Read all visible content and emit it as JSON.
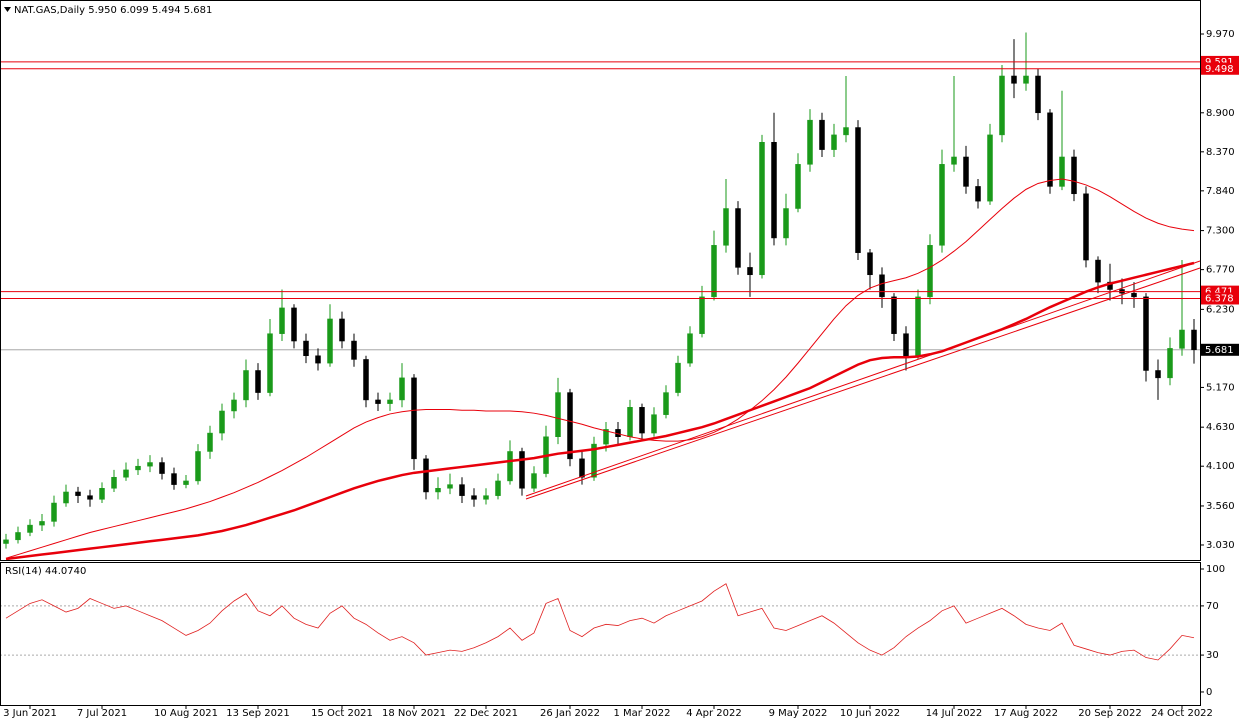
{
  "chart_data": {
    "type": "candlestick",
    "title": "NAT.GAS,Daily",
    "categories": [
      null,
      null,
      "3 Jun 2021",
      null,
      null,
      null,
      null,
      null,
      "7 Jul 2021",
      null,
      null,
      null,
      null,
      null,
      null,
      "10 Aug 2021",
      null,
      null,
      null,
      null,
      null,
      "13 Sep 2021",
      null,
      null,
      null,
      null,
      null,
      null,
      "15 Oct 2021",
      null,
      null,
      null,
      null,
      null,
      "18 Nov 2021",
      null,
      null,
      null,
      null,
      null,
      "22 Dec 2021",
      null,
      null,
      null,
      null,
      null,
      null,
      "26 Jan 2022",
      null,
      null,
      null,
      null,
      null,
      "1 Mar 2022",
      null,
      null,
      null,
      null,
      null,
      "4 Apr 2022",
      null,
      null,
      null,
      null,
      null,
      null,
      "9 May 2022",
      null,
      null,
      null,
      null,
      null,
      "10 Jun 2022",
      null,
      null,
      null,
      null,
      null,
      null,
      "14 Jul 2022",
      null,
      null,
      null,
      null,
      null,
      "17 Aug 2022",
      null,
      null,
      null,
      null,
      null,
      null,
      "20 Sep 2022",
      null,
      null,
      null,
      null,
      null,
      "24 Oct 2022",
      null
    ],
    "open": [
      3.05,
      3.1,
      3.2,
      3.3,
      3.35,
      3.6,
      3.75,
      3.7,
      3.65,
      3.8,
      3.95,
      4.05,
      4.1,
      4.15,
      4.0,
      3.85,
      3.9,
      4.3,
      4.55,
      4.85,
      5.0,
      5.4,
      5.1,
      5.9,
      6.25,
      5.8,
      5.6,
      5.5,
      6.1,
      5.8,
      5.55,
      5.0,
      4.95,
      5.0,
      5.3,
      4.2,
      3.75,
      3.8,
      3.85,
      3.7,
      3.65,
      3.7,
      3.9,
      4.3,
      3.8,
      4.0,
      4.5,
      5.1,
      4.2,
      3.95,
      4.4,
      4.6,
      4.5,
      4.9,
      4.55,
      4.8,
      5.1,
      5.5,
      5.9,
      6.4,
      7.1,
      7.6,
      6.8,
      6.7,
      8.5,
      7.2,
      7.6,
      8.2,
      8.8,
      8.4,
      8.6,
      8.7,
      7.0,
      6.7,
      6.4,
      5.9,
      5.6,
      6.4,
      7.1,
      8.2,
      8.3,
      7.9,
      7.7,
      8.6,
      9.4,
      9.3,
      9.4,
      8.9,
      7.9,
      8.3,
      7.8,
      6.9,
      6.6,
      6.5,
      6.45,
      6.4,
      5.4,
      5.3,
      5.7,
      5.95
    ],
    "high": [
      3.18,
      3.28,
      3.38,
      3.45,
      3.7,
      3.85,
      3.82,
      3.78,
      3.88,
      4.05,
      4.15,
      4.2,
      4.25,
      4.22,
      4.08,
      3.98,
      4.4,
      4.65,
      4.95,
      5.1,
      5.55,
      5.5,
      6.1,
      6.5,
      6.3,
      5.9,
      5.7,
      6.3,
      6.2,
      5.9,
      5.6,
      5.1,
      5.1,
      5.5,
      5.35,
      4.25,
      3.95,
      4.0,
      3.95,
      3.8,
      3.8,
      4.0,
      4.45,
      4.35,
      4.1,
      4.65,
      5.3,
      5.15,
      4.3,
      4.5,
      4.7,
      4.7,
      5.0,
      4.95,
      4.9,
      5.2,
      5.6,
      6.0,
      6.55,
      7.3,
      8.0,
      7.7,
      7.0,
      8.6,
      8.9,
      7.8,
      8.35,
      8.95,
      8.9,
      8.75,
      9.4,
      8.8,
      7.05,
      6.8,
      6.45,
      6.0,
      6.5,
      7.25,
      8.4,
      9.4,
      8.45,
      8.0,
      8.75,
      9.55,
      9.9,
      9.99,
      9.5,
      8.95,
      9.2,
      8.4,
      7.9,
      6.95,
      6.85,
      6.65,
      6.6,
      6.45,
      5.55,
      5.85,
      6.9,
      6.099
    ],
    "low": [
      2.98,
      3.05,
      3.15,
      3.22,
      3.28,
      3.55,
      3.6,
      3.55,
      3.6,
      3.75,
      3.9,
      3.98,
      4.02,
      3.92,
      3.78,
      3.8,
      3.85,
      4.2,
      4.45,
      4.75,
      4.9,
      5.0,
      5.05,
      5.8,
      5.7,
      5.5,
      5.4,
      5.45,
      5.7,
      5.45,
      4.9,
      4.85,
      4.85,
      4.9,
      4.05,
      3.65,
      3.65,
      3.72,
      3.6,
      3.55,
      3.58,
      3.65,
      3.85,
      3.7,
      3.75,
      3.95,
      4.4,
      4.1,
      3.85,
      3.9,
      4.3,
      4.4,
      4.45,
      4.45,
      4.5,
      4.75,
      5.05,
      5.45,
      5.85,
      6.35,
      7.0,
      6.7,
      6.4,
      6.65,
      7.1,
      7.1,
      7.55,
      8.1,
      8.3,
      8.3,
      8.5,
      6.9,
      6.5,
      6.25,
      5.8,
      5.4,
      5.55,
      6.3,
      7.0,
      8.1,
      7.8,
      7.6,
      7.65,
      8.5,
      9.1,
      9.2,
      8.8,
      7.8,
      7.85,
      7.7,
      6.8,
      6.45,
      6.35,
      6.3,
      6.25,
      5.25,
      5.0,
      5.2,
      5.6,
      5.494
    ],
    "close": [
      3.1,
      3.2,
      3.3,
      3.35,
      3.6,
      3.75,
      3.7,
      3.65,
      3.8,
      3.95,
      4.05,
      4.1,
      4.15,
      4.0,
      3.85,
      3.9,
      4.3,
      4.55,
      4.85,
      5.0,
      5.4,
      5.1,
      5.9,
      6.25,
      5.8,
      5.6,
      5.5,
      6.1,
      5.8,
      5.55,
      5.0,
      4.95,
      5.0,
      5.3,
      4.2,
      3.75,
      3.8,
      3.85,
      3.7,
      3.65,
      3.7,
      3.9,
      4.3,
      3.8,
      4.0,
      4.5,
      5.1,
      4.2,
      3.95,
      4.4,
      4.6,
      4.5,
      4.9,
      4.55,
      4.8,
      5.1,
      5.5,
      5.9,
      6.4,
      7.1,
      7.6,
      6.8,
      6.7,
      8.5,
      7.2,
      7.6,
      8.2,
      8.8,
      8.4,
      8.6,
      8.7,
      7.0,
      6.7,
      6.4,
      5.9,
      5.6,
      6.4,
      7.1,
      8.2,
      8.3,
      7.9,
      7.7,
      8.6,
      9.4,
      9.3,
      9.4,
      8.9,
      7.9,
      8.3,
      7.8,
      6.9,
      6.6,
      6.5,
      6.45,
      6.4,
      5.4,
      5.3,
      5.7,
      5.95,
      5.681
    ],
    "value_labels": {
      "open": {
        "99": "5.950"
      },
      "high": {
        "99": "6.099"
      },
      "low": {
        "99": "5.494"
      },
      "close": {
        "99": "5.681"
      }
    },
    "up_color": "#1a9a1a",
    "down_color": "#000000",
    "ylim": [
      2.826,
      10.432
    ],
    "yticks": [
      {
        "value": 9.97,
        "label": "9.970"
      },
      {
        "value": 8.9,
        "label": "8.900"
      },
      {
        "value": 8.37,
        "label": "8.370"
      },
      {
        "value": 7.84,
        "label": "7.840"
      },
      {
        "value": 7.3,
        "label": "7.300"
      },
      {
        "value": 6.77,
        "label": "6.770"
      },
      {
        "value": 6.23,
        "label": "6.230"
      },
      {
        "value": 5.17,
        "label": "5.170"
      },
      {
        "value": 4.63,
        "label": "4.630"
      },
      {
        "value": 4.1,
        "label": "4.100"
      },
      {
        "value": 3.56,
        "label": "3.560"
      },
      {
        "value": 3.03,
        "label": "3.030"
      }
    ],
    "overlays": [
      {
        "color": "#e8000b",
        "width": 2.5,
        "values": [
          2.84,
          2.86,
          2.88,
          2.9,
          2.92,
          2.94,
          2.96,
          2.98,
          3.0,
          3.02,
          3.04,
          3.06,
          3.08,
          3.1,
          3.12,
          3.14,
          3.16,
          3.19,
          3.22,
          3.26,
          3.3,
          3.35,
          3.4,
          3.45,
          3.5,
          3.56,
          3.62,
          3.68,
          3.74,
          3.8,
          3.85,
          3.9,
          3.94,
          3.98,
          4.01,
          4.03,
          4.05,
          4.07,
          4.09,
          4.11,
          4.13,
          4.15,
          4.17,
          4.19,
          4.21,
          4.24,
          4.27,
          4.29,
          4.31,
          4.33,
          4.36,
          4.39,
          4.42,
          4.45,
          4.48,
          4.51,
          4.55,
          4.59,
          4.63,
          4.68,
          4.74,
          4.8,
          4.86,
          4.92,
          4.98,
          5.04,
          5.1,
          5.16,
          5.24,
          5.32,
          5.4,
          5.48,
          5.54,
          5.57,
          5.58,
          5.58,
          5.59,
          5.62,
          5.66,
          5.72,
          5.78,
          5.84,
          5.9,
          5.96,
          6.03,
          6.1,
          6.18,
          6.26,
          6.33,
          6.4,
          6.47,
          6.53,
          6.58,
          6.62,
          6.66,
          6.7,
          6.74,
          6.78,
          6.82,
          6.86
        ]
      },
      {
        "color": "#e8000b",
        "width": 1,
        "values": [
          2.85,
          2.9,
          2.95,
          3.0,
          3.05,
          3.1,
          3.15,
          3.2,
          3.24,
          3.28,
          3.32,
          3.36,
          3.4,
          3.44,
          3.48,
          3.52,
          3.57,
          3.62,
          3.68,
          3.74,
          3.81,
          3.88,
          3.96,
          4.04,
          4.13,
          4.22,
          4.32,
          4.42,
          4.52,
          4.62,
          4.7,
          4.76,
          4.81,
          4.84,
          4.86,
          4.87,
          4.87,
          4.87,
          4.86,
          4.86,
          4.85,
          4.85,
          4.85,
          4.84,
          4.82,
          4.79,
          4.75,
          4.71,
          4.67,
          4.62,
          4.58,
          4.54,
          4.5,
          4.47,
          4.45,
          4.44,
          4.44,
          4.46,
          4.5,
          4.56,
          4.64,
          4.74,
          4.86,
          4.99,
          5.14,
          5.31,
          5.5,
          5.7,
          5.9,
          6.1,
          6.28,
          6.42,
          6.52,
          6.58,
          6.62,
          6.66,
          6.72,
          6.8,
          6.9,
          7.02,
          7.15,
          7.3,
          7.45,
          7.6,
          7.74,
          7.86,
          7.94,
          7.98,
          8.0,
          7.97,
          7.92,
          7.85,
          7.76,
          7.66,
          7.56,
          7.47,
          7.4,
          7.35,
          7.32,
          7.3
        ]
      }
    ],
    "levels": {
      "color": "#e8000b",
      "values": [
        9.591,
        9.498,
        6.471,
        6.378
      ]
    },
    "rsi": {
      "title": "RSI(14)",
      "color": "#e02020",
      "values": [
        60,
        66,
        72,
        75,
        70,
        65,
        68,
        76,
        72,
        68,
        70,
        66,
        62,
        58,
        52,
        46,
        50,
        56,
        66,
        74,
        80,
        66,
        62,
        70,
        60,
        55,
        52,
        64,
        70,
        60,
        55,
        48,
        42,
        45,
        40,
        30,
        32,
        34,
        33,
        36,
        40,
        45,
        52,
        42,
        48,
        72,
        76,
        50,
        45,
        52,
        55,
        54,
        58,
        60,
        56,
        62,
        66,
        70,
        74,
        82,
        88,
        62,
        65,
        68,
        52,
        50,
        54,
        58,
        62,
        56,
        48,
        40,
        34,
        30,
        36,
        45,
        52,
        58,
        66,
        70,
        56,
        60,
        64,
        68,
        62,
        55,
        52,
        50,
        56,
        38,
        35,
        32,
        30,
        33,
        34,
        28,
        26,
        35,
        46,
        44.074
      ],
      "value_labels": {
        "99": "44.0740"
      },
      "ylim": [
        -10.6,
        105.7
      ],
      "yticks": [
        100,
        70,
        30,
        0
      ],
      "levels": [
        70,
        30
      ]
    }
  }
}
